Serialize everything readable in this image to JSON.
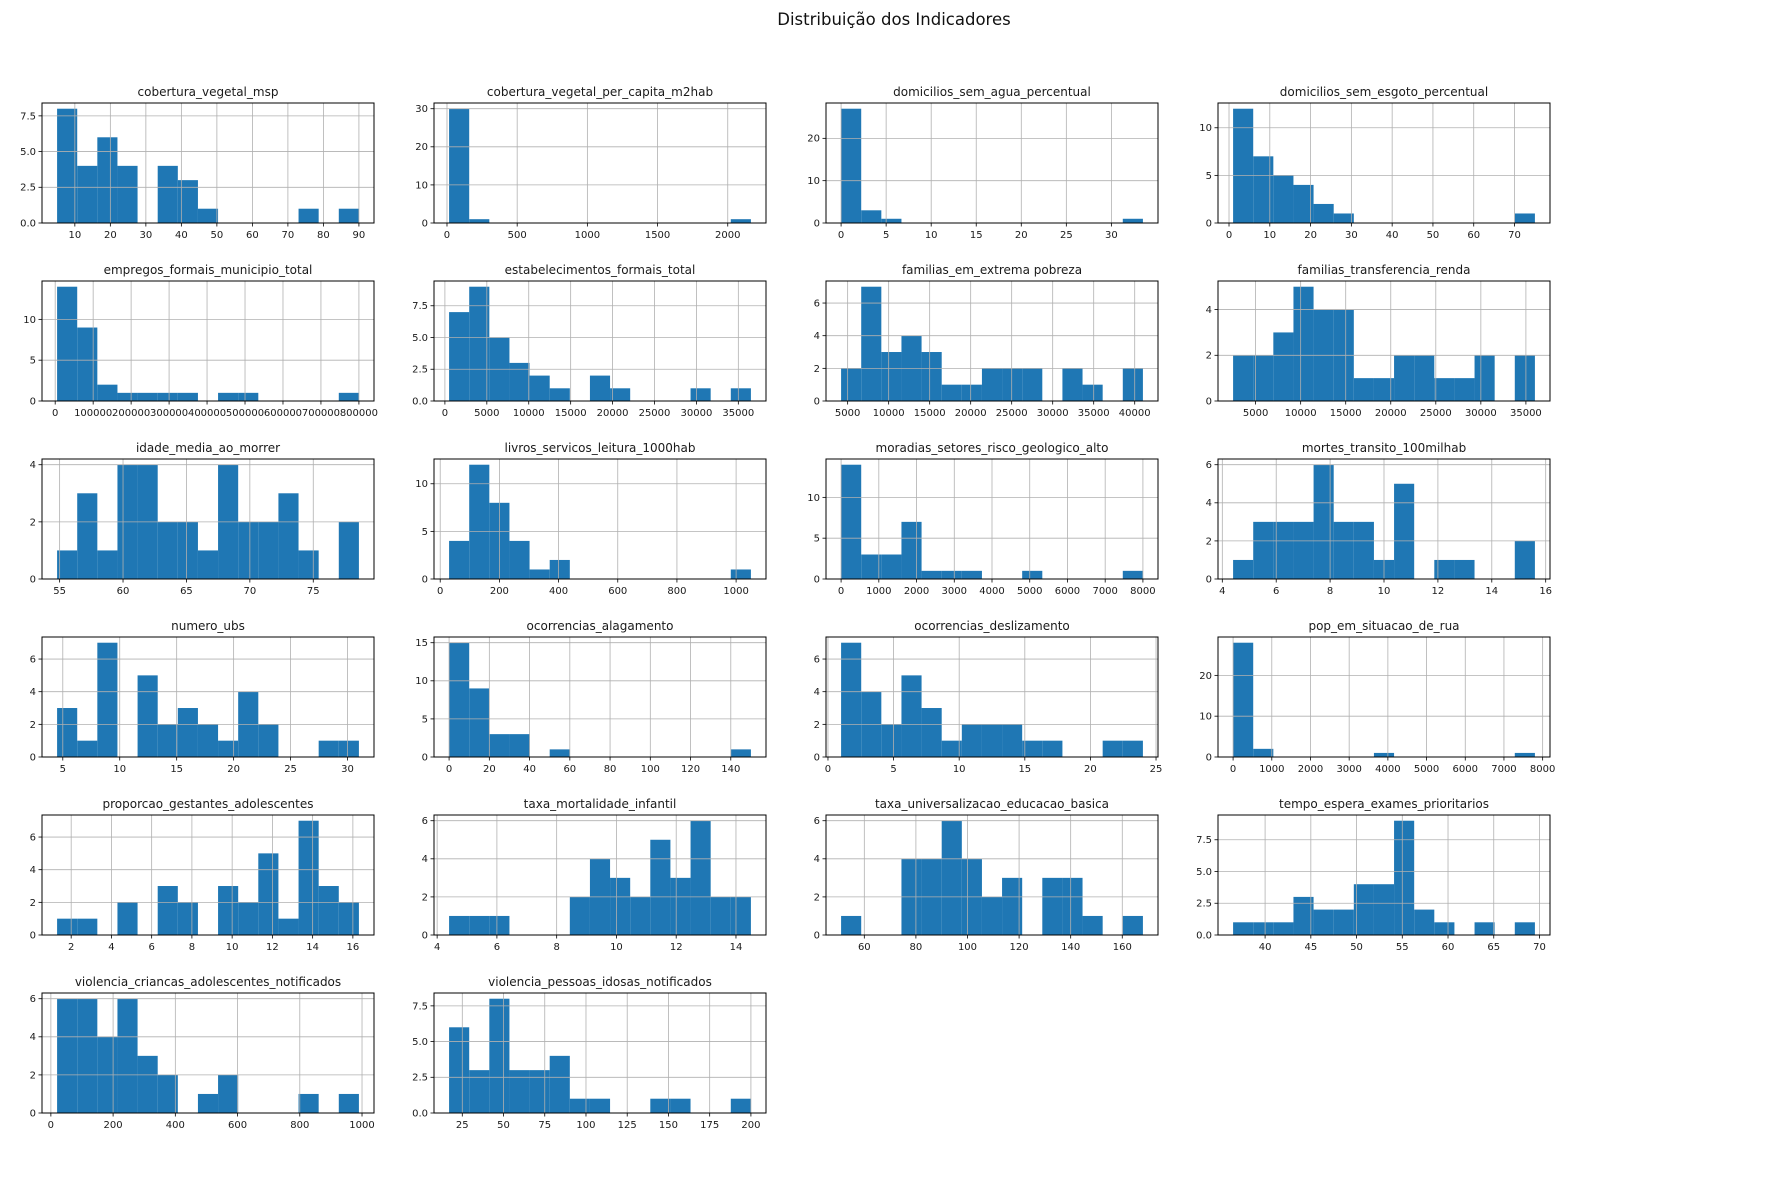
{
  "figure": {
    "title": "Distribuição dos Indicadores"
  },
  "colors": {
    "bar": "#1f77b4",
    "grid": "#b0b0b0",
    "axis": "#000000",
    "text": "#1a1a1a"
  },
  "layout": {
    "columns": 4,
    "rows": 6,
    "grid_on": true,
    "bins_per_chart": 15
  },
  "chart_data": {
    "type": "bar",
    "subtype": "histogram-grid",
    "title": "Distribuição dos Indicadores",
    "charts": [
      {
        "title": "cobertura_vegetal_msp",
        "bin_start": 5,
        "bin_end": 90,
        "counts": [
          8,
          4,
          6,
          4,
          0,
          4,
          3,
          1,
          0,
          0,
          0,
          0,
          1,
          0,
          1
        ],
        "xticks": [
          10,
          20,
          30,
          40,
          50,
          60,
          70,
          80,
          90
        ],
        "xtick_labels": [
          "10",
          "20",
          "30",
          "40",
          "50",
          "60",
          "70",
          "80",
          "90"
        ],
        "yticks": [
          0,
          2.5,
          5,
          7.5
        ],
        "ytick_labels": [
          "0.0",
          "2.5",
          "5.0",
          "7.5"
        ]
      },
      {
        "title": "cobertura_vegetal_per_capita_m2hab",
        "bin_start": 15,
        "bin_end": 2165,
        "counts": [
          30,
          1,
          0,
          0,
          0,
          0,
          0,
          0,
          0,
          0,
          0,
          0,
          0,
          0,
          1
        ],
        "xticks": [
          0,
          500,
          1000,
          1500,
          2000
        ],
        "xtick_labels": [
          "0",
          "500",
          "1000",
          "1500",
          "2000"
        ],
        "yticks": [
          0,
          10,
          20,
          30
        ],
        "ytick_labels": [
          "0",
          "10",
          "20",
          "30"
        ]
      },
      {
        "title": "domicilios_sem_agua_percentual",
        "bin_start": 0,
        "bin_end": 33.5,
        "counts": [
          27,
          3,
          1,
          0,
          0,
          0,
          0,
          0,
          0,
          0,
          0,
          0,
          0,
          0,
          1
        ],
        "xticks": [
          0,
          5,
          10,
          15,
          20,
          25,
          30
        ],
        "xtick_labels": [
          "0",
          "5",
          "10",
          "15",
          "20",
          "25",
          "30"
        ],
        "yticks": [
          0,
          10,
          20
        ],
        "ytick_labels": [
          "0",
          "10",
          "20"
        ]
      },
      {
        "title": "domicilios_sem_esgoto_percentual",
        "bin_start": 1,
        "bin_end": 75,
        "counts": [
          12,
          7,
          5,
          4,
          2,
          1,
          0,
          0,
          0,
          0,
          0,
          0,
          0,
          0,
          1
        ],
        "xticks": [
          0,
          10,
          20,
          30,
          40,
          50,
          60,
          70
        ],
        "xtick_labels": [
          "0",
          "10",
          "20",
          "30",
          "40",
          "50",
          "60",
          "70"
        ],
        "yticks": [
          0,
          5,
          10
        ],
        "ytick_labels": [
          "0",
          "5",
          "10"
        ]
      },
      {
        "title": "empregos_formais_municipio_total",
        "bin_start": 5000,
        "bin_end": 800000,
        "counts": [
          14,
          9,
          2,
          1,
          1,
          1,
          1,
          0,
          1,
          1,
          0,
          0,
          0,
          0,
          1
        ],
        "xticks": [
          0,
          100000,
          200000,
          300000,
          400000,
          500000,
          600000,
          700000,
          800000
        ],
        "xtick_labels": [
          "0",
          "100000",
          "200000",
          "300000",
          "400000",
          "500000",
          "600000",
          "700000",
          "800000"
        ],
        "yticks": [
          0,
          5,
          10
        ],
        "ytick_labels": [
          "0",
          "5",
          "10"
        ]
      },
      {
        "title": "estabelecimentos_formais_total",
        "bin_start": 500,
        "bin_end": 36500,
        "counts": [
          7,
          9,
          5,
          3,
          2,
          1,
          0,
          2,
          1,
          0,
          0,
          0,
          1,
          0,
          1
        ],
        "xticks": [
          0,
          5000,
          10000,
          15000,
          20000,
          25000,
          30000,
          35000
        ],
        "xtick_labels": [
          "0",
          "5000",
          "10000",
          "15000",
          "20000",
          "25000",
          "30000",
          "35000"
        ],
        "yticks": [
          0,
          2.5,
          5,
          7.5
        ],
        "ytick_labels": [
          "0.0",
          "2.5",
          "5.0",
          "7.5"
        ]
      },
      {
        "title": "familias_em_extrema pobreza",
        "bin_start": 4200,
        "bin_end": 41000,
        "counts": [
          2,
          7,
          3,
          4,
          3,
          1,
          1,
          2,
          2,
          2,
          0,
          2,
          1,
          0,
          2
        ],
        "xticks": [
          5000,
          10000,
          15000,
          20000,
          25000,
          30000,
          35000,
          40000
        ],
        "xtick_labels": [
          "5000",
          "10000",
          "15000",
          "20000",
          "25000",
          "30000",
          "35000",
          "40000"
        ],
        "yticks": [
          0,
          2,
          4,
          6
        ],
        "ytick_labels": [
          "0",
          "2",
          "4",
          "6"
        ]
      },
      {
        "title": "familias_transferencia_renda",
        "bin_start": 2500,
        "bin_end": 36000,
        "counts": [
          2,
          2,
          3,
          5,
          4,
          4,
          1,
          1,
          2,
          2,
          1,
          1,
          2,
          0,
          2
        ],
        "xticks": [
          5000,
          10000,
          15000,
          20000,
          25000,
          30000,
          35000
        ],
        "xtick_labels": [
          "5000",
          "10000",
          "15000",
          "20000",
          "25000",
          "30000",
          "35000"
        ],
        "yticks": [
          0,
          2,
          4
        ],
        "ytick_labels": [
          "0",
          "2",
          "4"
        ]
      },
      {
        "title": "idade_media_ao_morrer",
        "bin_start": 54.8,
        "bin_end": 78.6,
        "counts": [
          1,
          3,
          1,
          4,
          4,
          2,
          2,
          1,
          4,
          2,
          2,
          3,
          1,
          0,
          2
        ],
        "xticks": [
          55,
          60,
          65,
          70,
          75
        ],
        "xtick_labels": [
          "55",
          "60",
          "65",
          "70",
          "75"
        ],
        "yticks": [
          0,
          2,
          4
        ],
        "ytick_labels": [
          "0",
          "2",
          "4"
        ]
      },
      {
        "title": "livros_servicos_leitura_1000hab",
        "bin_start": 30,
        "bin_end": 1050,
        "counts": [
          4,
          12,
          8,
          4,
          1,
          2,
          0,
          0,
          0,
          0,
          0,
          0,
          0,
          0,
          1
        ],
        "xticks": [
          0,
          200,
          400,
          600,
          800,
          1000
        ],
        "xtick_labels": [
          "0",
          "200",
          "400",
          "600",
          "800",
          "1000"
        ],
        "yticks": [
          0,
          5,
          10
        ],
        "ytick_labels": [
          "0",
          "5",
          "10"
        ]
      },
      {
        "title": "moradias_setores_risco_geologico_alto",
        "bin_start": 0,
        "bin_end": 8000,
        "counts": [
          14,
          3,
          3,
          7,
          1,
          1,
          1,
          0,
          0,
          1,
          0,
          0,
          0,
          0,
          1
        ],
        "xticks": [
          0,
          1000,
          2000,
          3000,
          4000,
          5000,
          6000,
          7000,
          8000
        ],
        "xtick_labels": [
          "0",
          "1000",
          "2000",
          "3000",
          "4000",
          "5000",
          "6000",
          "7000",
          "8000"
        ],
        "yticks": [
          0,
          5,
          10
        ],
        "ytick_labels": [
          "0",
          "5",
          "10"
        ]
      },
      {
        "title": "mortes_transito_100milhab",
        "bin_start": 4.4,
        "bin_end": 15.6,
        "counts": [
          1,
          3,
          3,
          3,
          6,
          3,
          3,
          1,
          5,
          0,
          1,
          1,
          0,
          0,
          2
        ],
        "xticks": [
          4,
          6,
          8,
          10,
          12,
          14,
          16
        ],
        "xtick_labels": [
          "4",
          "6",
          "8",
          "10",
          "12",
          "14",
          "16"
        ],
        "yticks": [
          0,
          2,
          4,
          6
        ],
        "ytick_labels": [
          "0",
          "2",
          "4",
          "6"
        ]
      },
      {
        "title": "numero_ubs",
        "bin_start": 4.5,
        "bin_end": 31,
        "counts": [
          3,
          1,
          7,
          0,
          5,
          2,
          3,
          2,
          1,
          4,
          2,
          0,
          0,
          1,
          1
        ],
        "xticks": [
          5,
          10,
          15,
          20,
          25,
          30
        ],
        "xtick_labels": [
          "5",
          "10",
          "15",
          "20",
          "25",
          "30"
        ],
        "yticks": [
          0,
          2,
          4,
          6
        ],
        "ytick_labels": [
          "0",
          "2",
          "4",
          "6"
        ]
      },
      {
        "title": "ocorrencias_alagamento",
        "bin_start": 0,
        "bin_end": 150,
        "counts": [
          15,
          9,
          3,
          3,
          0,
          1,
          0,
          0,
          0,
          0,
          0,
          0,
          0,
          0,
          1
        ],
        "xticks": [
          0,
          20,
          40,
          60,
          80,
          100,
          120,
          140
        ],
        "xtick_labels": [
          "0",
          "20",
          "40",
          "60",
          "80",
          "100",
          "120",
          "140"
        ],
        "yticks": [
          0,
          5,
          10,
          15
        ],
        "ytick_labels": [
          "0",
          "5",
          "10",
          "15"
        ]
      },
      {
        "title": "ocorrencias_deslizamento",
        "bin_start": 1,
        "bin_end": 24,
        "counts": [
          7,
          4,
          2,
          5,
          3,
          1,
          2,
          2,
          2,
          1,
          1,
          0,
          0,
          1,
          1
        ],
        "xticks": [
          0,
          5,
          10,
          15,
          20,
          25
        ],
        "xtick_labels": [
          "0",
          "5",
          "10",
          "15",
          "20",
          "25"
        ],
        "yticks": [
          0,
          2,
          4,
          6
        ],
        "ytick_labels": [
          "0",
          "2",
          "4",
          "6"
        ]
      },
      {
        "title": "pop_em_situacao_de_rua",
        "bin_start": 0,
        "bin_end": 7800,
        "counts": [
          28,
          2,
          0,
          0,
          0,
          0,
          0,
          1,
          0,
          0,
          0,
          0,
          0,
          0,
          1
        ],
        "xticks": [
          0,
          1000,
          2000,
          3000,
          4000,
          5000,
          6000,
          7000,
          8000
        ],
        "xtick_labels": [
          "0",
          "1000",
          "2000",
          "3000",
          "4000",
          "5000",
          "6000",
          "7000",
          "8000"
        ],
        "yticks": [
          0,
          10,
          20
        ],
        "ytick_labels": [
          "0",
          "10",
          "20"
        ]
      },
      {
        "title": "proporcao_gestantes_adolescentes",
        "bin_start": 1.3,
        "bin_end": 16.3,
        "counts": [
          1,
          1,
          0,
          2,
          0,
          3,
          2,
          0,
          3,
          2,
          5,
          1,
          7,
          3,
          2
        ],
        "xticks": [
          2,
          4,
          6,
          8,
          10,
          12,
          14,
          16
        ],
        "xtick_labels": [
          "2",
          "4",
          "6",
          "8",
          "10",
          "12",
          "14",
          "16"
        ],
        "yticks": [
          0,
          2,
          4,
          6
        ],
        "ytick_labels": [
          "0",
          "2",
          "4",
          "6"
        ]
      },
      {
        "title": "taxa_mortalidade_infantil",
        "bin_start": 4.4,
        "bin_end": 14.5,
        "counts": [
          1,
          1,
          1,
          0,
          0,
          0,
          2,
          4,
          3,
          2,
          5,
          3,
          6,
          2,
          2
        ],
        "xticks": [
          4,
          6,
          8,
          10,
          12,
          14
        ],
        "xtick_labels": [
          "4",
          "6",
          "8",
          "10",
          "12",
          "14"
        ],
        "yticks": [
          0,
          2,
          4,
          6
        ],
        "ytick_labels": [
          "0",
          "2",
          "4",
          "6"
        ]
      },
      {
        "title": "taxa_universalizacao_educacao_basica",
        "bin_start": 51,
        "bin_end": 168,
        "counts": [
          1,
          0,
          0,
          4,
          4,
          6,
          4,
          2,
          3,
          0,
          3,
          3,
          1,
          0,
          1
        ],
        "xticks": [
          60,
          80,
          100,
          120,
          140,
          160
        ],
        "xtick_labels": [
          "60",
          "80",
          "100",
          "120",
          "140",
          "160"
        ],
        "yticks": [
          0,
          2,
          4,
          6
        ],
        "ytick_labels": [
          "0",
          "2",
          "4",
          "6"
        ]
      },
      {
        "title": "tempo_espera_exames_prioritarios",
        "bin_start": 36.5,
        "bin_end": 69.5,
        "counts": [
          1,
          1,
          1,
          3,
          2,
          2,
          4,
          4,
          9,
          2,
          1,
          0,
          1,
          0,
          1
        ],
        "xticks": [
          40,
          45,
          50,
          55,
          60,
          65,
          70
        ],
        "xtick_labels": [
          "40",
          "45",
          "50",
          "55",
          "60",
          "65",
          "70"
        ],
        "yticks": [
          0,
          2.5,
          5,
          7.5
        ],
        "ytick_labels": [
          "0.0",
          "2.5",
          "5.0",
          "7.5"
        ]
      },
      {
        "title": "violencia_criancas_adolescentes_notificados",
        "bin_start": 20,
        "bin_end": 990,
        "counts": [
          6,
          6,
          4,
          6,
          3,
          2,
          0,
          1,
          2,
          0,
          0,
          0,
          1,
          0,
          1
        ],
        "xticks": [
          0,
          200,
          400,
          600,
          800,
          1000
        ],
        "xtick_labels": [
          "0",
          "200",
          "400",
          "600",
          "800",
          "1000"
        ],
        "yticks": [
          0,
          2,
          4,
          6
        ],
        "ytick_labels": [
          "0",
          "2",
          "4",
          "6"
        ]
      },
      {
        "title": "violencia_pessoas_idosas_notificados",
        "bin_start": 17,
        "bin_end": 200,
        "counts": [
          6,
          3,
          8,
          3,
          3,
          4,
          1,
          1,
          0,
          0,
          1,
          1,
          0,
          0,
          1
        ],
        "xticks": [
          25,
          50,
          75,
          100,
          125,
          150,
          175,
          200
        ],
        "xtick_labels": [
          "25",
          "50",
          "75",
          "100",
          "125",
          "150",
          "175",
          "200"
        ],
        "yticks": [
          0,
          2.5,
          5,
          7.5
        ],
        "ytick_labels": [
          "0.0",
          "2.5",
          "5.0",
          "7.5"
        ]
      }
    ]
  }
}
